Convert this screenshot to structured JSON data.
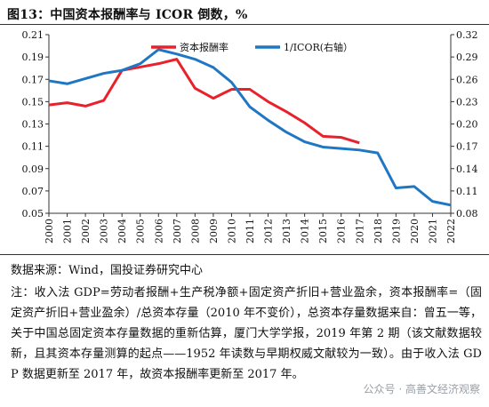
{
  "title": "图13：中国资本报酬率与 ICOR 倒数，%",
  "source": "数据来源：Wind，国投证券研究中心",
  "notes": "注：收入法 GDP=劳动者报酬+生产税净额+固定资产折旧+营业盈余，资本报酬率=（固定资产折旧+营业盈余）/总资本存量（2010 年不变价），总资本存量数据来自：曾五一等，关于中国总固定资本存量数据的重新估算，厦门大学学报，2019 年第 2 期（该文献数据较新，且其资本存量测算的起点——1952 年读数与早期权威文献较为一致）。由于收入法 GDP 数据更新至 2017 年，故资本报酬率更新至 2017 年。",
  "watermark": "公众号 · 高善文经济观察",
  "chart_data": {
    "type": "line",
    "title": "",
    "xlabel": "",
    "ylabel": "",
    "x": [
      "2000",
      "2001",
      "2002",
      "2003",
      "2004",
      "2005",
      "2006",
      "2007",
      "2008",
      "2009",
      "2010",
      "2011",
      "2012",
      "2013",
      "2014",
      "2015",
      "2016",
      "2017",
      "2018",
      "2019",
      "2020",
      "2021",
      "2022"
    ],
    "ylim_left": [
      0.05,
      0.21
    ],
    "left_ticks": [
      "0.05",
      "0.07",
      "0.09",
      "0.11",
      "0.13",
      "0.15",
      "0.17",
      "0.19",
      "0.21"
    ],
    "ylim_right": [
      0.08,
      0.32
    ],
    "right_ticks": [
      "0.08",
      "0.11",
      "0.14",
      "0.17",
      "0.20",
      "0.23",
      "0.26",
      "0.29",
      "0.32"
    ],
    "legend_position": "top-center",
    "series": [
      {
        "name": "资本报酬率",
        "axis": "left",
        "color": "#e8212b",
        "values": [
          0.147,
          0.149,
          0.146,
          0.151,
          0.178,
          0.181,
          0.184,
          0.188,
          0.162,
          0.153,
          0.161,
          0.161,
          0.15,
          0.141,
          0.131,
          0.119,
          0.118,
          0.113,
          null,
          null,
          null,
          null,
          null
        ]
      },
      {
        "name": "1/ICOR(右轴）",
        "axis": "right",
        "color": "#1f77c4",
        "values": [
          0.258,
          0.254,
          0.261,
          0.268,
          0.272,
          0.281,
          0.3,
          0.294,
          0.287,
          0.276,
          0.256,
          0.223,
          0.205,
          0.189,
          0.176,
          0.169,
          0.167,
          0.165,
          0.161,
          0.114,
          0.116,
          0.096,
          0.091
        ]
      }
    ]
  }
}
